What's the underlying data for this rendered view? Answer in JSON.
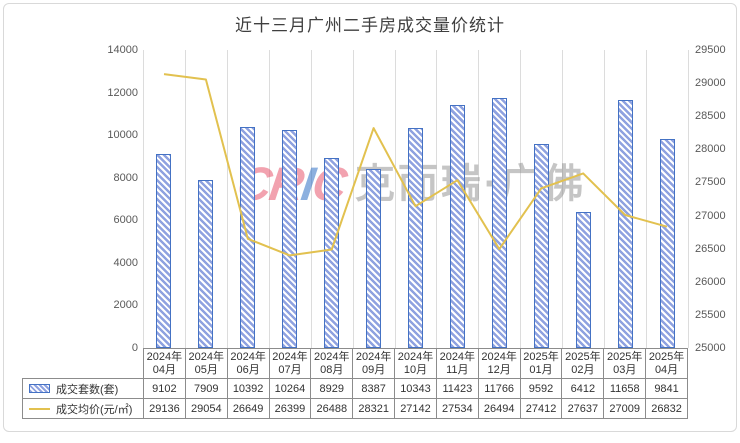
{
  "title": "近十三月广州二手房成交量价统计",
  "watermark": {
    "logo_red1": "CR",
    "logo_blue": "I",
    "logo_red2": "C",
    "text": "克而瑞·广佛"
  },
  "colors": {
    "bar_fill": "#8FA2E0",
    "bar_border": "#4472C4",
    "line": "#E2C14F",
    "grid": "#DCDCDC",
    "axis_text": "#595959",
    "table_border": "#8C8C8C",
    "watermark_red": "#E8566E",
    "watermark_blue": "#2D6FC4",
    "watermark_gray": "#8C8C8C"
  },
  "chart_data": {
    "type": "bar+line combo with data table",
    "title": "近十三月广州二手房成交量价统计",
    "categories_two_line": [
      [
        "2024年",
        "04月"
      ],
      [
        "2024年",
        "05月"
      ],
      [
        "2024年",
        "06月"
      ],
      [
        "2024年",
        "07月"
      ],
      [
        "2024年",
        "08月"
      ],
      [
        "2024年",
        "09月"
      ],
      [
        "2024年",
        "10月"
      ],
      [
        "2024年",
        "11月"
      ],
      [
        "2024年",
        "12月"
      ],
      [
        "2025年",
        "01月"
      ],
      [
        "2025年",
        "02月"
      ],
      [
        "2025年",
        "03月"
      ],
      [
        "2025年",
        "04月"
      ]
    ],
    "series": [
      {
        "name": "成交套数(套)",
        "type": "bar",
        "axis": "left",
        "values": [
          9102,
          7909,
          10392,
          10264,
          8929,
          8387,
          10343,
          11423,
          11766,
          9592,
          6412,
          11658,
          9841
        ]
      },
      {
        "name": "成交均价(元/㎡)",
        "type": "line",
        "axis": "right",
        "values": [
          29136,
          29054,
          26649,
          26399,
          26488,
          28321,
          27142,
          27534,
          26494,
          27412,
          27637,
          27009,
          26832
        ]
      }
    ],
    "axis_left": {
      "min": 0,
      "max": 14000,
      "step": 2000,
      "ticks": [
        "14000",
        "12000",
        "10000",
        "8000",
        "6000",
        "4000",
        "2000",
        "0"
      ]
    },
    "axis_right": {
      "min": 25000,
      "max": 29500,
      "step": 500,
      "ticks": [
        "29500",
        "29000",
        "28500",
        "28000",
        "27500",
        "27000",
        "26500",
        "26000",
        "25500",
        "25000"
      ]
    },
    "grid": "vertical-only",
    "legend_position": "data-table-left"
  }
}
